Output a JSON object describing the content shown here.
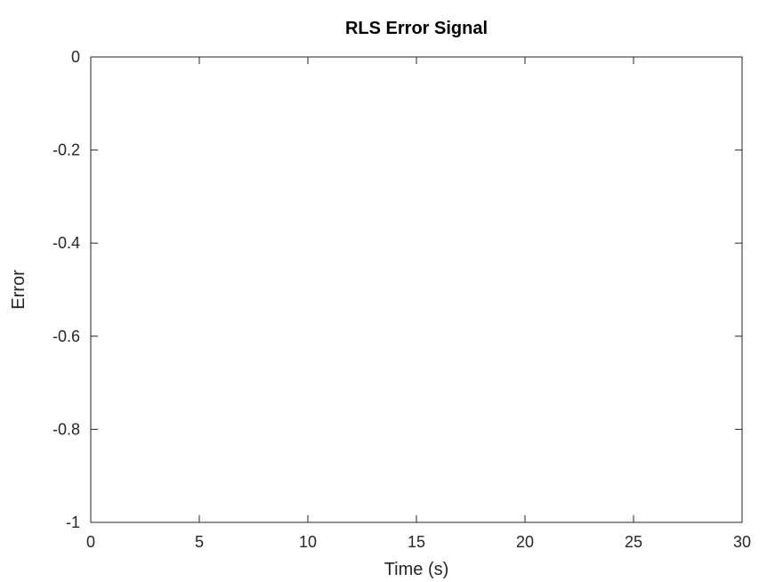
{
  "chart_data": {
    "type": "line",
    "title": "RLS Error Signal",
    "xlabel": "Time (s)",
    "ylabel": "Error",
    "xlim": [
      0,
      30
    ],
    "ylim": [
      -1,
      0
    ],
    "x_ticks": [
      0,
      5,
      10,
      15,
      20,
      25,
      30
    ],
    "x_tick_labels": [
      "0",
      "5",
      "10",
      "15",
      "20",
      "25",
      "30"
    ],
    "y_ticks": [
      0,
      -0.2,
      -0.4,
      -0.6,
      -0.8,
      -1
    ],
    "y_tick_labels": [
      "0",
      "-0.2",
      "-0.4",
      "-0.6",
      "-0.8",
      "-1"
    ],
    "grid": false,
    "series": [],
    "colors": {
      "axis": "#262626",
      "title": "#000000",
      "background": "#ffffff"
    }
  }
}
